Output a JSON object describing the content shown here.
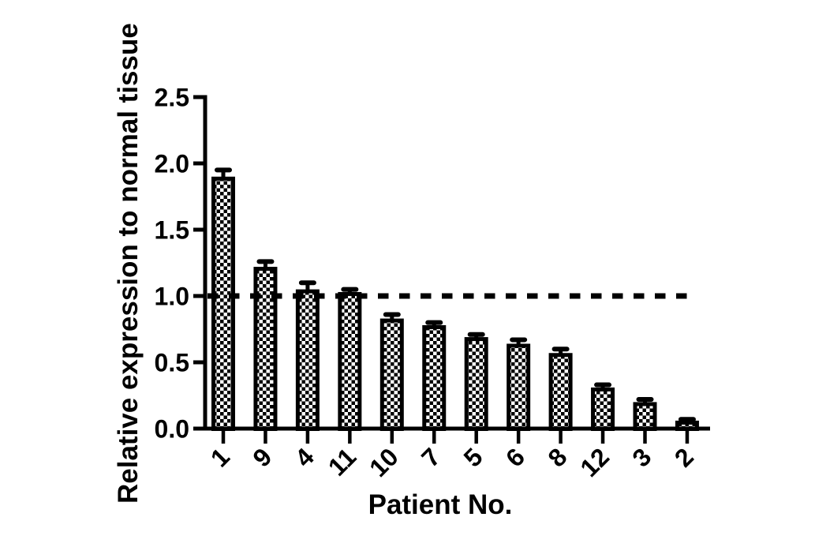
{
  "chart_data": {
    "type": "bar",
    "title": "",
    "xlabel": "Patient No.",
    "ylabel": "Relative expression to normal tissue",
    "categories": [
      "1",
      "9",
      "4",
      "11",
      "10",
      "7",
      "5",
      "6",
      "8",
      "12",
      "3",
      "2"
    ],
    "values": [
      1.9,
      1.22,
      1.05,
      1.03,
      0.83,
      0.78,
      0.69,
      0.64,
      0.57,
      0.31,
      0.2,
      0.06
    ],
    "errors": [
      0.05,
      0.04,
      0.05,
      0.02,
      0.03,
      0.02,
      0.02,
      0.03,
      0.03,
      0.02,
      0.02,
      0.01
    ],
    "ylim": [
      0.0,
      2.5
    ],
    "ytick_labels": [
      "0.0",
      "0.5",
      "1.0",
      "1.5",
      "2.0",
      "2.5"
    ],
    "yticks": [
      0.0,
      0.5,
      1.0,
      1.5,
      2.0,
      2.5
    ],
    "reference_line_y": 1.0,
    "reference_line_style": "dashed",
    "bar_fill": "black-white-checkerboard",
    "bar_border_color": "#000000",
    "axis_color": "#000000",
    "background_color": "#ffffff",
    "legend": "none",
    "grid": "off",
    "error_bar_direction": "up"
  }
}
